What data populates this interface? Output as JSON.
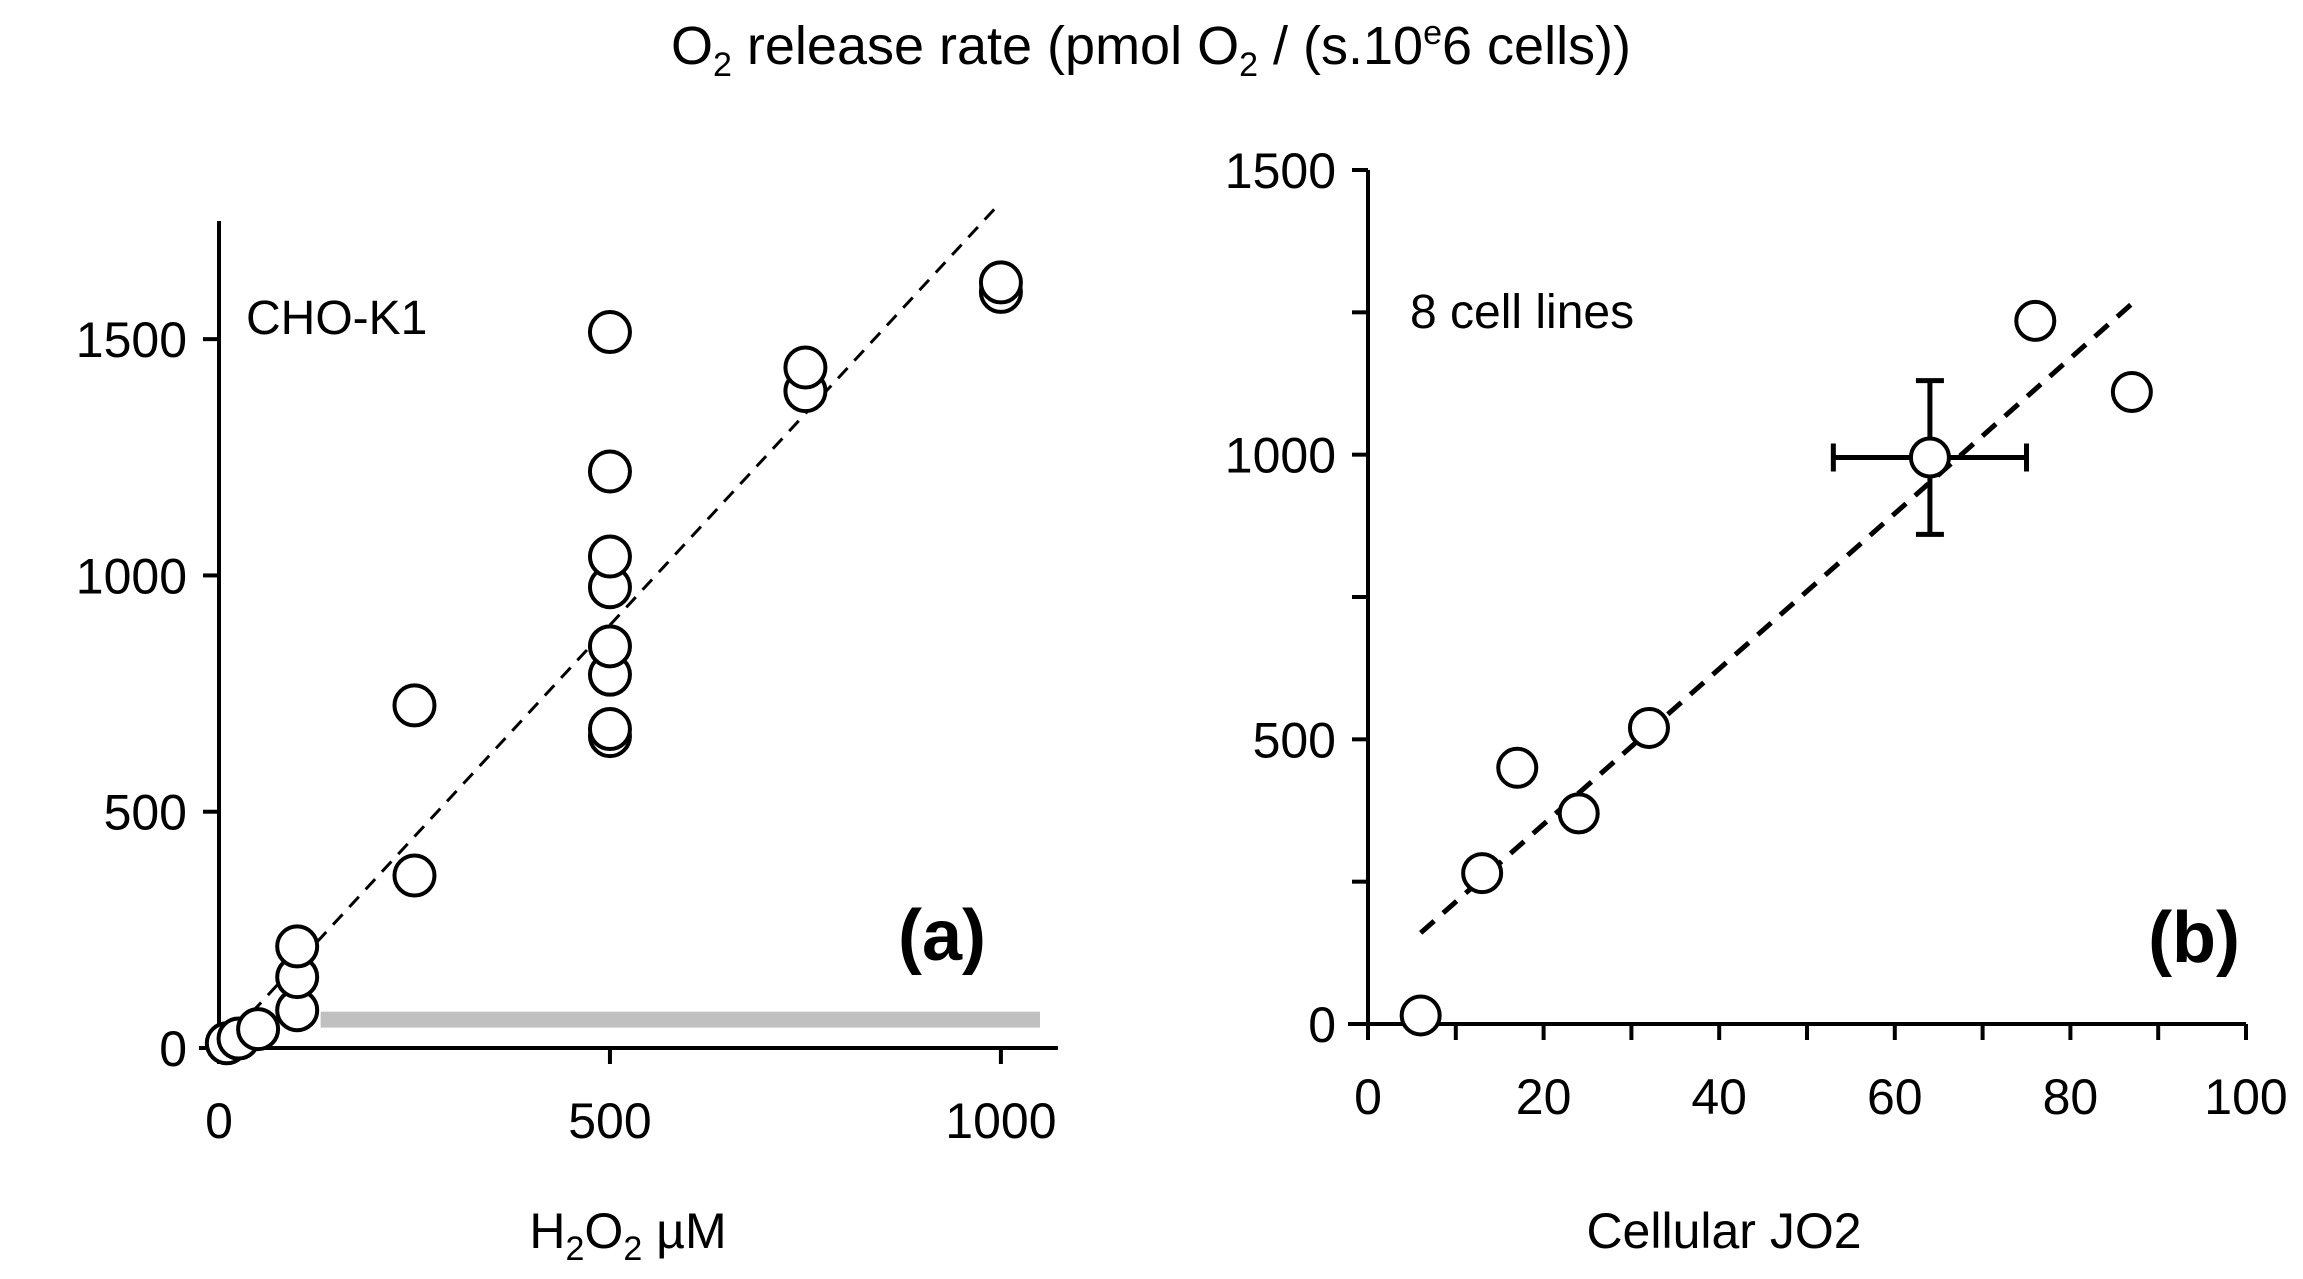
{
  "figure_title": {
    "prefix": "O",
    "sub1": "2",
    "middle": " release rate (pmol O",
    "sub2": "2",
    "after": " / (s.10",
    "sup": "e",
    "suffix": "6 cells))"
  },
  "colors": {
    "marker_fill": "#ffffff",
    "marker_stroke": "#000000",
    "fit_line": "#000000",
    "baseline_bar": "#c0c0c0"
  },
  "chart_data": [
    {
      "type": "scatter",
      "panel": "a",
      "panel_label": "(a)",
      "annotation": "CHO-K1",
      "xlabel": {
        "main": "H",
        "sub1": "2",
        "mid": "O",
        "sub2": "2",
        "unit": " µM"
      },
      "ylabel": "",
      "xlim": [
        0,
        1050
      ],
      "ylim": [
        0,
        1750
      ],
      "x_ticks": [
        0,
        500,
        1000
      ],
      "x_tick_labels": [
        "0",
        "500",
        "1000"
      ],
      "y_ticks": [
        0,
        500,
        1000,
        1500
      ],
      "y_tick_labels": [
        "0",
        "500",
        "1000",
        "1500"
      ],
      "points": [
        {
          "x": 10,
          "y": 10
        },
        {
          "x": 25,
          "y": 20
        },
        {
          "x": 50,
          "y": 40
        },
        {
          "x": 100,
          "y": 80
        },
        {
          "x": 100,
          "y": 150
        },
        {
          "x": 100,
          "y": 215
        },
        {
          "x": 250,
          "y": 365
        },
        {
          "x": 250,
          "y": 725
        },
        {
          "x": 500,
          "y": 660
        },
        {
          "x": 500,
          "y": 675
        },
        {
          "x": 500,
          "y": 790
        },
        {
          "x": 500,
          "y": 850
        },
        {
          "x": 500,
          "y": 975
        },
        {
          "x": 500,
          "y": 1040
        },
        {
          "x": 500,
          "y": 1220
        },
        {
          "x": 500,
          "y": 1515
        },
        {
          "x": 750,
          "y": 1390
        },
        {
          "x": 750,
          "y": 1440
        },
        {
          "x": 1000,
          "y": 1600
        },
        {
          "x": 1000,
          "y": 1620
        }
      ],
      "fit_line": {
        "x": [
          0,
          1000
        ],
        "y": [
          0,
          1790
        ]
      },
      "baseline_band": {
        "x": [
          130,
          1050
        ],
        "y": 60
      }
    },
    {
      "type": "scatter",
      "panel": "b",
      "panel_label": "(b)",
      "annotation": "8 cell lines",
      "xlabel": "Cellular JO2",
      "ylabel": "",
      "xlim": [
        0,
        100
      ],
      "ylim": [
        0,
        1500
      ],
      "x_ticks": [
        0,
        20,
        40,
        60,
        80,
        100
      ],
      "x_tick_labels": [
        "0",
        "20",
        "40",
        "60",
        "80",
        "100"
      ],
      "y_ticks": [
        0,
        500,
        1000,
        1500
      ],
      "y_tick_labels": [
        "0",
        "500",
        "1000",
        "1500"
      ],
      "y_minor_ticks": [
        250,
        750,
        1250
      ],
      "x_minor_ticks": [
        10,
        30,
        50,
        70,
        90
      ],
      "points": [
        {
          "x": 6,
          "y": 15
        },
        {
          "x": 13,
          "y": 265
        },
        {
          "x": 17,
          "y": 450
        },
        {
          "x": 24,
          "y": 370
        },
        {
          "x": 32,
          "y": 520
        },
        {
          "x": 64,
          "y": 995
        },
        {
          "x": 76,
          "y": 1235
        },
        {
          "x": 87,
          "y": 1110
        }
      ],
      "error_bar": {
        "x": 64,
        "y": 995,
        "x_err": 11,
        "y_err": 135
      },
      "fit_line": {
        "x": [
          6,
          87
        ],
        "y": [
          160,
          1265
        ]
      }
    }
  ]
}
